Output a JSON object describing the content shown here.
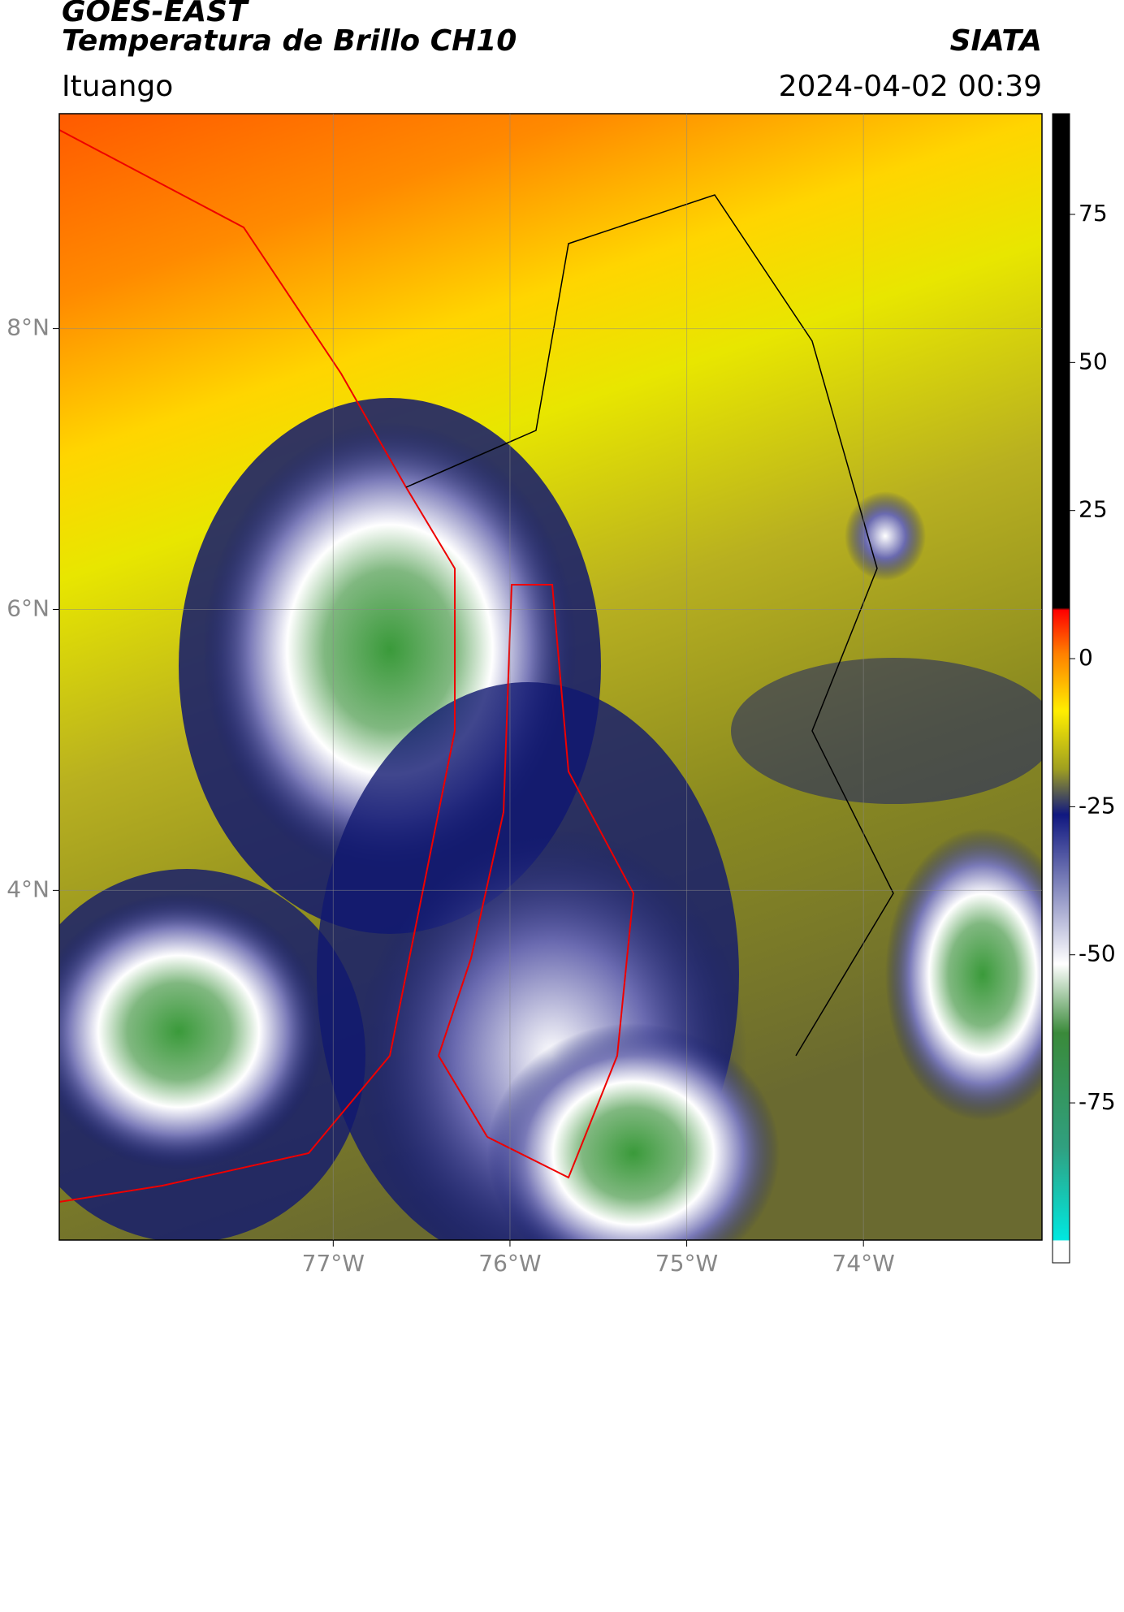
{
  "header": {
    "title": "GOES-EAST",
    "subtitle": "Temperatura de Brillo CH10",
    "source": "SIATA",
    "region": "Ituango",
    "datetime": "2024-04-02 00:39"
  },
  "map": {
    "xlim": [
      -78.55,
      -72.99
    ],
    "ylim": [
      1.51,
      9.53
    ],
    "xticks": [
      {
        "value": -77,
        "label": "77°W"
      },
      {
        "value": -76,
        "label": "76°W"
      },
      {
        "value": -75,
        "label": "75°W"
      },
      {
        "value": -74,
        "label": "74°W"
      }
    ],
    "yticks": [
      {
        "value": 8,
        "label": "8°N"
      },
      {
        "value": 6,
        "label": "6°N"
      },
      {
        "value": 4,
        "label": "4°N"
      }
    ],
    "grid": true
  },
  "colorbar": {
    "lim": [
      -102,
      92
    ],
    "ticks": [
      75,
      50,
      25,
      0,
      -25,
      -50,
      -75
    ]
  }
}
